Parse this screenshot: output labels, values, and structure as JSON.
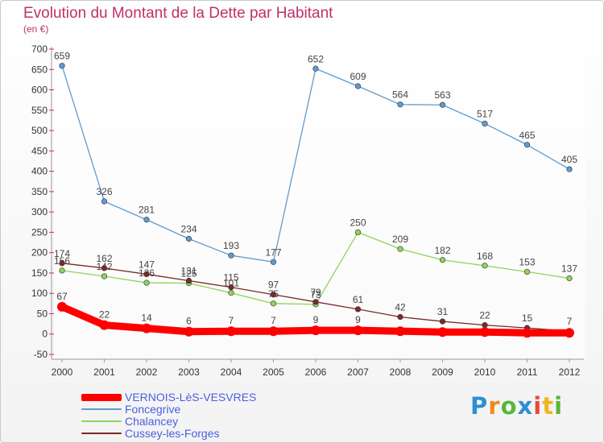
{
  "chart_data": {
    "type": "line",
    "title": "Evolution du Montant de la Dette par Habitant",
    "subtitle": "(en €)",
    "x": [
      "2000",
      "2001",
      "2002",
      "2003",
      "2004",
      "2005",
      "2006",
      "2007",
      "2008",
      "2009",
      "2010",
      "2011",
      "2012"
    ],
    "ylim": [
      -50,
      700
    ],
    "yticks": [
      -50,
      0,
      50,
      100,
      150,
      200,
      250,
      300,
      350,
      400,
      450,
      500,
      550,
      600,
      650,
      700
    ],
    "grid": false,
    "legend_position": "bottom-left",
    "series": [
      {
        "name": "VERNOIS-LèS-VESVRES",
        "color": "#ff0000",
        "values": [
          67,
          22,
          14,
          6,
          7,
          7,
          9,
          9,
          7,
          5,
          5,
          3,
          3
        ],
        "labels": [
          "67",
          "22",
          "14",
          "6",
          "7",
          "7",
          "9",
          "9",
          "",
          "",
          "",
          "",
          ""
        ]
      },
      {
        "name": "Foncegrive",
        "color": "#5f9bd1",
        "values": [
          659,
          326,
          281,
          234,
          193,
          177,
          652,
          609,
          564,
          563,
          517,
          465,
          405
        ],
        "labels": [
          "659",
          "326",
          "281",
          "234",
          "193",
          "177",
          "652",
          "609",
          "564",
          "563",
          "517",
          "465",
          "405"
        ]
      },
      {
        "name": "Chalancey",
        "color": "#8fd35a",
        "values": [
          156,
          142,
          126,
          125,
          101,
          75,
          73,
          250,
          209,
          182,
          168,
          153,
          137
        ],
        "labels": [
          "156",
          "142",
          "126",
          "125",
          "101",
          "75",
          "73",
          "250",
          "209",
          "182",
          "168",
          "153",
          "137"
        ]
      },
      {
        "name": "Cussey-les-Forges",
        "color": "#7a2a2a",
        "values": [
          174,
          162,
          147,
          131,
          115,
          97,
          79,
          61,
          42,
          31,
          22,
          15,
          7
        ],
        "labels": [
          "174",
          "162",
          "147",
          "131",
          "115",
          "97",
          "79",
          "61",
          "42",
          "31",
          "22",
          "15",
          "7"
        ]
      }
    ]
  },
  "legend": {
    "items": [
      {
        "label": "VERNOIS-LèS-VESVRES",
        "color": "#ff0000"
      },
      {
        "label": "Foncegrive",
        "color": "#5f9bd1"
      },
      {
        "label": "Chalancey",
        "color": "#8fd35a"
      },
      {
        "label": "Cussey-les-Forges",
        "color": "#7a2a2a"
      }
    ]
  },
  "logo": {
    "letters": [
      "P",
      "r",
      "o",
      "x",
      "i",
      "t",
      "i"
    ]
  }
}
